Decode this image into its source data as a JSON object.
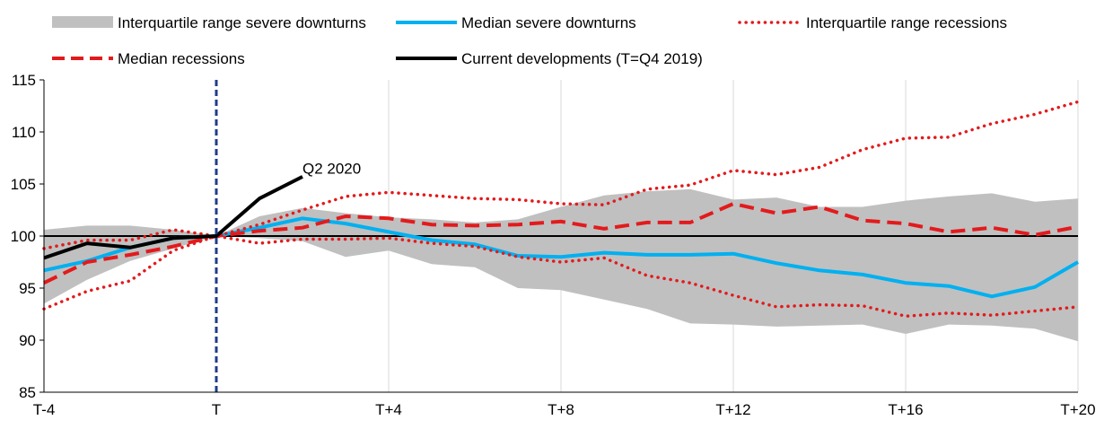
{
  "chart_data": {
    "type": "line",
    "title": "",
    "xlabel": "",
    "ylabel": "",
    "x_range": [
      -4,
      20
    ],
    "ylim": [
      85,
      115
    ],
    "yticks": [
      85,
      90,
      95,
      100,
      105,
      110,
      115
    ],
    "xticks": [
      {
        "x": -4,
        "label": "T-4"
      },
      {
        "x": 0,
        "label": "T"
      },
      {
        "x": 4,
        "label": "T+4"
      },
      {
        "x": 8,
        "label": "T+8"
      },
      {
        "x": 12,
        "label": "T+12"
      },
      {
        "x": 16,
        "label": "T+16"
      },
      {
        "x": 20,
        "label": "T+20"
      }
    ],
    "grid": "vertical",
    "reference_line": 100,
    "event_line_x": 0,
    "annotation": {
      "text": "Q2 2020",
      "x": 2,
      "y": 106.5
    },
    "legend": [
      {
        "key": "iqr_severe",
        "label": "Interquartile range severe downturns"
      },
      {
        "key": "median_severe",
        "label": "Median severe downturns"
      },
      {
        "key": "iqr_recessions",
        "label": "Interquartile range recessions"
      },
      {
        "key": "median_recessions",
        "label": "Median recessions"
      },
      {
        "key": "current",
        "label": "Current developments (T=Q4 2019)"
      }
    ],
    "colors": {
      "iqr_severe": "#c0c0c0",
      "median_severe": "#00b0f0",
      "recessions": "#e31a1c",
      "current": "#000000",
      "event_line": "#1f3c88",
      "gridline": "#d9d9d9"
    },
    "x": [
      -4,
      -3,
      -2,
      -1,
      0,
      1,
      2,
      3,
      4,
      5,
      6,
      7,
      8,
      9,
      10,
      11,
      12,
      13,
      14,
      15,
      16,
      17,
      18,
      19,
      20
    ],
    "band_severe": {
      "name": "Interquartile range severe downturns",
      "lower": [
        93.5,
        95.8,
        97.6,
        98.8,
        100,
        99.8,
        99.5,
        98.0,
        98.6,
        97.3,
        97.0,
        95.0,
        94.8,
        93.9,
        93.0,
        91.6,
        91.5,
        91.3,
        91.4,
        91.5,
        90.6,
        91.5,
        91.4,
        91.1,
        89.9
      ],
      "upper": [
        100.6,
        101.0,
        101.0,
        100.6,
        100,
        101.9,
        102.7,
        102.2,
        101.8,
        101.6,
        101.3,
        101.6,
        102.8,
        103.9,
        104.3,
        104.5,
        103.5,
        103.7,
        102.8,
        102.8,
        103.4,
        103.8,
        104.1,
        103.3,
        103.6
      ]
    },
    "series": [
      {
        "key": "median_severe",
        "name": "Median severe downturns",
        "values": [
          96.7,
          97.6,
          98.9,
          99.8,
          100,
          100.8,
          101.7,
          101.2,
          100.4,
          99.6,
          99.2,
          98.1,
          98.0,
          98.4,
          98.2,
          98.2,
          98.3,
          97.4,
          96.7,
          96.3,
          95.5,
          95.2,
          94.2,
          95.1,
          97.5
        ]
      },
      {
        "key": "median_recessions",
        "name": "Median recessions",
        "values": [
          95.5,
          97.5,
          98.2,
          99.0,
          100,
          100.5,
          100.8,
          101.9,
          101.7,
          101.1,
          101.0,
          101.1,
          101.4,
          100.7,
          101.3,
          101.3,
          103.1,
          102.2,
          102.8,
          101.5,
          101.2,
          100.4,
          100.8,
          100.1,
          100.9
        ]
      },
      {
        "key": "iqr_recessions_upper",
        "name": "Interquartile range recessions (upper)",
        "values": [
          98.8,
          99.6,
          99.6,
          100.6,
          100,
          101.1,
          102.5,
          103.8,
          104.2,
          103.9,
          103.6,
          103.5,
          103.1,
          103.0,
          104.5,
          104.9,
          106.3,
          105.9,
          106.6,
          108.3,
          109.4,
          109.5,
          110.8,
          111.7,
          112.9
        ]
      },
      {
        "key": "iqr_recessions_lower",
        "name": "Interquartile range recessions (lower)",
        "values": [
          93.0,
          94.7,
          95.7,
          98.6,
          100,
          99.3,
          99.7,
          99.7,
          99.8,
          99.3,
          99.0,
          98.0,
          97.5,
          97.9,
          96.2,
          95.5,
          94.3,
          93.2,
          93.4,
          93.3,
          92.3,
          92.6,
          92.4,
          92.8,
          93.2
        ]
      },
      {
        "key": "current",
        "name": "Current developments (T=Q4 2019)",
        "x": [
          -4,
          -3,
          -2,
          -1,
          0,
          1,
          2
        ],
        "values": [
          97.9,
          99.3,
          98.9,
          99.8,
          100,
          103.6,
          105.7
        ]
      }
    ]
  }
}
